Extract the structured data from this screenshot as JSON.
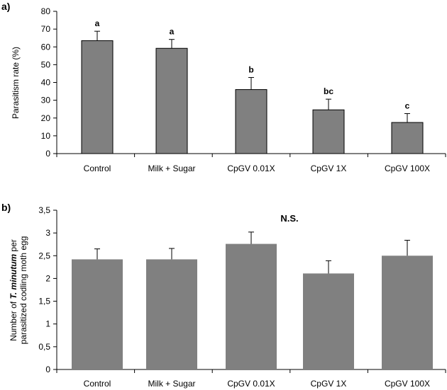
{
  "chart_data": [
    {
      "type": "bar",
      "panel_label": "a)",
      "categories": [
        "Control",
        "Milk + Sugar",
        "CpGV 0.01X",
        "CpGV 1X",
        "CpGV 100X"
      ],
      "values": [
        63.5,
        59.2,
        36.0,
        24.6,
        17.5
      ],
      "errors": [
        5.3,
        5.0,
        6.8,
        6.0,
        5.0
      ],
      "significance_letters": [
        "a",
        "a",
        "b",
        "bc",
        "c"
      ],
      "ylabel": "Parasitism rate (%)",
      "ylim": [
        0,
        80
      ],
      "yticks": [
        0,
        10,
        20,
        30,
        40,
        50,
        60,
        70,
        80
      ],
      "ytick_labels": [
        "0",
        "10",
        "20",
        "30",
        "40",
        "50",
        "60",
        "70",
        "80"
      ],
      "bar_color": "#808080",
      "bar_outline": "#000000",
      "grid": false
    },
    {
      "type": "bar",
      "panel_label": "b)",
      "categories": [
        "Control",
        "Milk + Sugar",
        "CpGV 0.01X",
        "CpGV 1X",
        "CpGV 100X"
      ],
      "values": [
        2.42,
        2.42,
        2.76,
        2.11,
        2.5
      ],
      "errors": [
        0.23,
        0.24,
        0.26,
        0.28,
        0.34
      ],
      "annotation": "N.S.",
      "ylabel_parts": [
        "Number of ",
        "T. minutum",
        " per"
      ],
      "ylabel_line2": "parasitized codling moth egg",
      "ylim": [
        0,
        3.5
      ],
      "yticks": [
        0,
        0.5,
        1,
        1.5,
        2,
        2.5,
        3,
        3.5
      ],
      "ytick_labels": [
        "0",
        "0,5",
        "1",
        "1,5",
        "2",
        "2,5",
        "3",
        "3,5"
      ],
      "bar_color": "#808080",
      "bar_outline": "none",
      "grid": false
    }
  ]
}
